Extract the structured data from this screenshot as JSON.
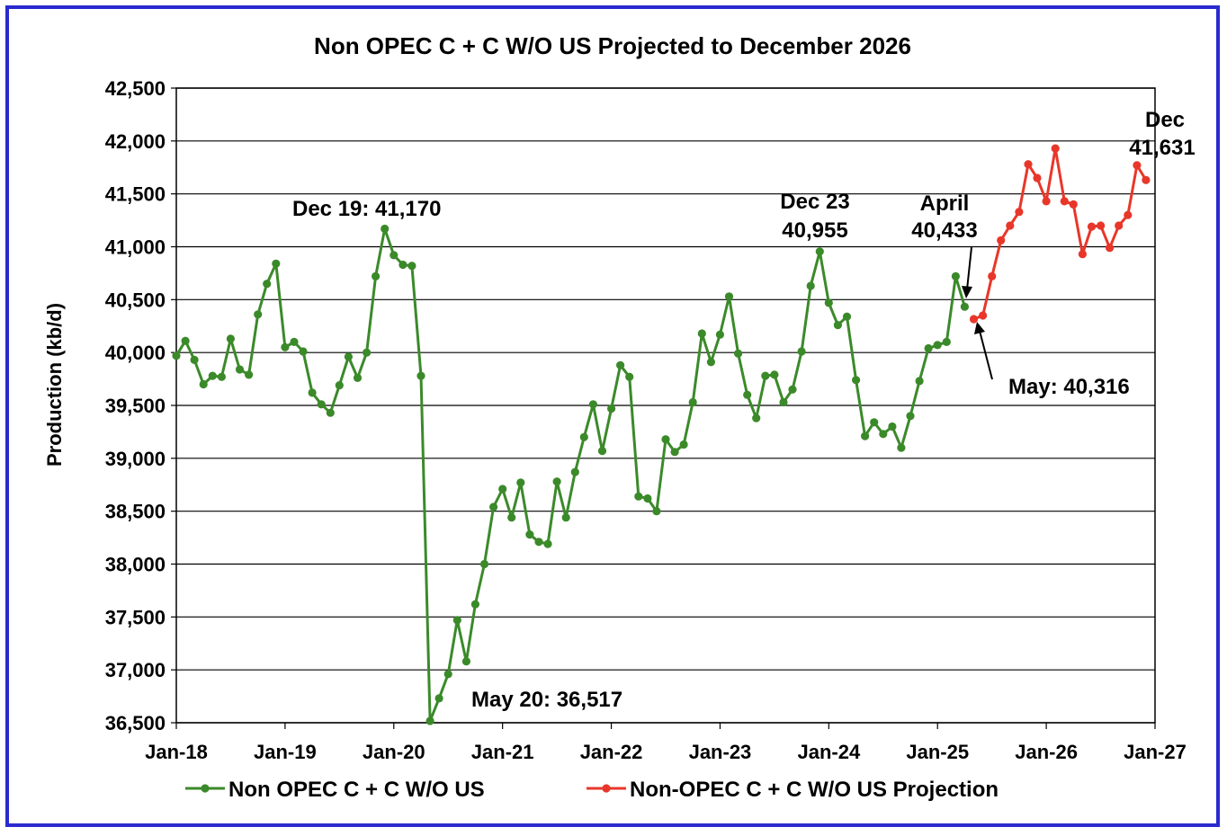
{
  "chart_data": {
    "type": "line",
    "title": "Non OPEC C + C W/O US Projected to December 2026",
    "xlabel": "",
    "ylabel": "Production (kb/d)",
    "ylim": [
      36500,
      42500
    ],
    "y_ticks": [
      36500,
      37000,
      37500,
      38000,
      38500,
      39000,
      39500,
      40000,
      40500,
      41000,
      41500,
      42000,
      42500
    ],
    "y_tick_labels": [
      "36,500",
      "37,000",
      "37,500",
      "38,000",
      "38,500",
      "39,000",
      "39,500",
      "40,000",
      "40,500",
      "41,000",
      "41,500",
      "42,000",
      "42,500"
    ],
    "x_tick_labels": [
      "Jan-18",
      "Jan-19",
      "Jan-20",
      "Jan-21",
      "Jan-22",
      "Jan-23",
      "Jan-24",
      "Jan-25",
      "Jan-26",
      "Jan-27"
    ],
    "x_range": [
      "2018-01",
      "2027-01"
    ],
    "grid": true,
    "legend_position": "bottom",
    "series": [
      {
        "name": "Non OPEC C + C W/O US",
        "color": "#3b8a2a",
        "start": "2018-01",
        "values": [
          39970,
          40110,
          39930,
          39700,
          39780,
          39770,
          40130,
          39840,
          39790,
          40360,
          40650,
          40840,
          40050,
          40100,
          40010,
          39620,
          39510,
          39430,
          39690,
          39960,
          39760,
          40000,
          40720,
          41170,
          40920,
          40830,
          40820,
          39780,
          36517,
          36730,
          36960,
          37470,
          37080,
          37620,
          38000,
          38540,
          38710,
          38440,
          38770,
          38280,
          38210,
          38190,
          38780,
          38440,
          38870,
          39200,
          39510,
          39070,
          39470,
          39880,
          39770,
          38640,
          38620,
          38500,
          39180,
          39060,
          39130,
          39530,
          40180,
          39910,
          40170,
          40530,
          39990,
          39600,
          39380,
          39780,
          39790,
          39530,
          39650,
          40010,
          40630,
          40955,
          40470,
          40260,
          40340,
          39740,
          39210,
          39340,
          39230,
          39300,
          39100,
          39400,
          39730,
          40040,
          40070,
          40100,
          40720,
          40433
        ]
      },
      {
        "name": "Non-OPEC C + C W/O US Projection",
        "color": "#e8372a",
        "start": "2025-05",
        "values": [
          40316,
          40350,
          40720,
          41060,
          41200,
          41330,
          41780,
          41650,
          41430,
          41930,
          41430,
          41400,
          40930,
          41190,
          41200,
          40990,
          41200,
          41300,
          41770,
          41631
        ]
      }
    ],
    "annotations": [
      {
        "text": "Dec 19: 41,170"
      },
      {
        "text": "May 20: 36,517"
      },
      {
        "text": "Dec 23",
        "text2": "40,955"
      },
      {
        "text": "April",
        "text2": "40,433"
      },
      {
        "text": "May: 40,316"
      },
      {
        "text": "Dec",
        "text2": "41,631"
      }
    ]
  }
}
